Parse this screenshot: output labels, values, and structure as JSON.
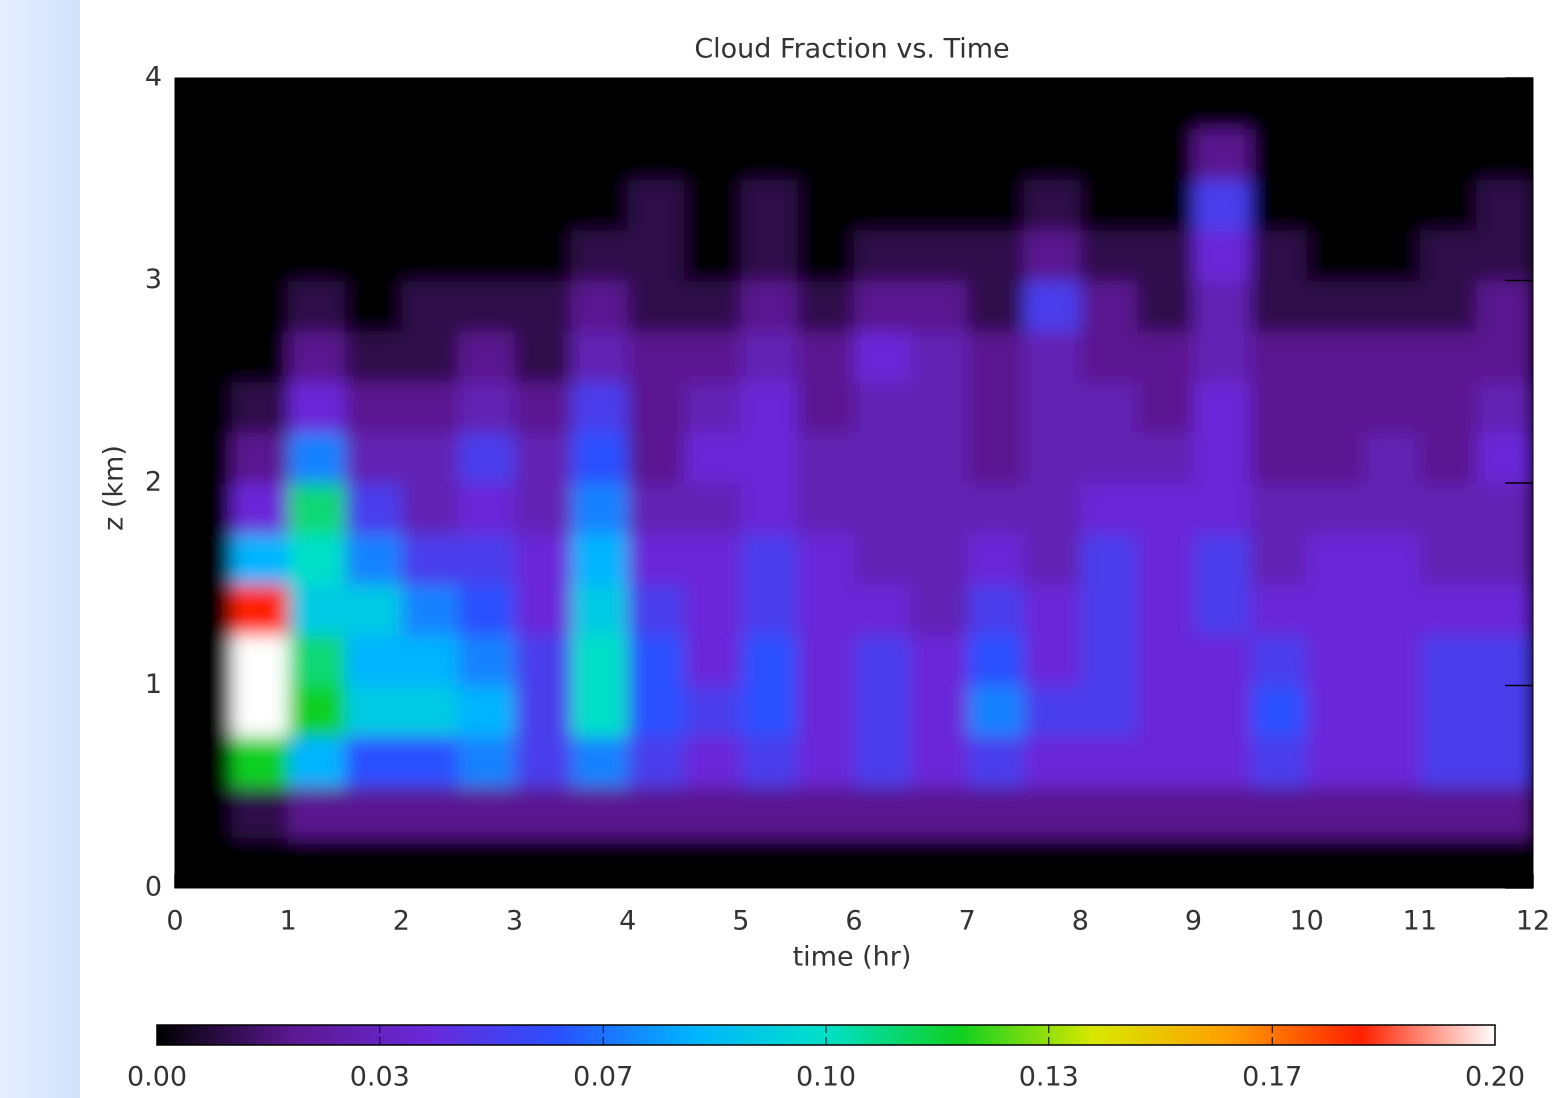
{
  "chart_data": {
    "type": "heatmap",
    "title": "Cloud Fraction vs. Time",
    "x_label": "time (hr)",
    "y_label": "z (km)",
    "xlim": [
      0,
      12
    ],
    "ylim": [
      0,
      4
    ],
    "xticks": [
      0,
      1,
      2,
      3,
      4,
      5,
      6,
      7,
      8,
      9,
      10,
      11,
      12
    ],
    "yticks": [
      0,
      1,
      2,
      3,
      4
    ],
    "xbins": [
      0,
      0.5,
      1,
      1.5,
      2,
      2.5,
      3,
      3.5,
      4,
      4.5,
      5,
      5.5,
      6,
      6.5,
      7,
      7.5,
      8,
      8.5,
      9,
      9.5,
      10,
      10.5,
      11,
      11.5,
      12
    ],
    "ybins": [
      0,
      0.25,
      0.5,
      0.75,
      1,
      1.25,
      1.5,
      1.75,
      2,
      2.25,
      2.5,
      2.75,
      3,
      3.25,
      3.5,
      3.75,
      4
    ],
    "values": [
      [
        0,
        0,
        0,
        0,
        0,
        0,
        0,
        0,
        0,
        0,
        0,
        0,
        0,
        0,
        0,
        0
      ],
      [
        0,
        0.01,
        0.12,
        0.2,
        0.2,
        0.18,
        0.08,
        0.04,
        0.02,
        0.01,
        0,
        0,
        0,
        0,
        0,
        0
      ],
      [
        0,
        0.02,
        0.08,
        0.12,
        0.11,
        0.09,
        0.1,
        0.11,
        0.07,
        0.04,
        0.02,
        0.01,
        0,
        0,
        0,
        0
      ],
      [
        0,
        0.02,
        0.06,
        0.09,
        0.08,
        0.09,
        0.07,
        0.05,
        0.03,
        0.02,
        0.01,
        0,
        0,
        0,
        0,
        0
      ],
      [
        0,
        0.02,
        0.06,
        0.09,
        0.08,
        0.07,
        0.05,
        0.03,
        0.03,
        0.02,
        0.01,
        0.01,
        0,
        0,
        0,
        0
      ],
      [
        0,
        0.02,
        0.07,
        0.08,
        0.07,
        0.06,
        0.05,
        0.04,
        0.05,
        0.03,
        0.02,
        0.01,
        0,
        0,
        0,
        0
      ],
      [
        0,
        0.02,
        0.05,
        0.05,
        0.05,
        0.04,
        0.04,
        0.03,
        0.03,
        0.02,
        0.01,
        0.01,
        0,
        0,
        0,
        0
      ],
      [
        0,
        0.02,
        0.07,
        0.1,
        0.1,
        0.09,
        0.08,
        0.07,
        0.06,
        0.05,
        0.03,
        0.02,
        0.01,
        0,
        0,
        0
      ],
      [
        0,
        0.02,
        0.05,
        0.06,
        0.06,
        0.05,
        0.04,
        0.03,
        0.02,
        0.02,
        0.02,
        0.01,
        0.01,
        0.01,
        0,
        0
      ],
      [
        0,
        0.02,
        0.04,
        0.05,
        0.04,
        0.04,
        0.04,
        0.03,
        0.04,
        0.03,
        0.02,
        0.01,
        0,
        0,
        0,
        0
      ],
      [
        0,
        0.02,
        0.05,
        0.06,
        0.06,
        0.05,
        0.05,
        0.04,
        0.04,
        0.04,
        0.03,
        0.02,
        0.01,
        0.01,
        0,
        0
      ],
      [
        0,
        0.02,
        0.04,
        0.04,
        0.04,
        0.04,
        0.04,
        0.03,
        0.03,
        0.02,
        0.02,
        0.01,
        0,
        0,
        0,
        0
      ],
      [
        0,
        0.02,
        0.05,
        0.05,
        0.05,
        0.04,
        0.03,
        0.03,
        0.03,
        0.03,
        0.04,
        0.02,
        0.01,
        0,
        0,
        0
      ],
      [
        0,
        0.02,
        0.04,
        0.04,
        0.04,
        0.03,
        0.03,
        0.03,
        0.03,
        0.03,
        0.03,
        0.02,
        0.01,
        0,
        0,
        0
      ],
      [
        0,
        0.02,
        0.05,
        0.07,
        0.06,
        0.05,
        0.04,
        0.03,
        0.02,
        0.02,
        0.02,
        0.01,
        0.01,
        0,
        0,
        0
      ],
      [
        0,
        0.02,
        0.04,
        0.05,
        0.04,
        0.04,
        0.03,
        0.03,
        0.03,
        0.03,
        0.03,
        0.05,
        0.02,
        0.01,
        0,
        0
      ],
      [
        0,
        0.02,
        0.04,
        0.05,
        0.05,
        0.05,
        0.05,
        0.04,
        0.03,
        0.03,
        0.02,
        0.02,
        0.01,
        0,
        0,
        0
      ],
      [
        0,
        0.02,
        0.04,
        0.04,
        0.04,
        0.04,
        0.04,
        0.04,
        0.03,
        0.02,
        0.02,
        0.01,
        0.01,
        0,
        0,
        0
      ],
      [
        0,
        0.02,
        0.04,
        0.04,
        0.04,
        0.05,
        0.05,
        0.04,
        0.04,
        0.04,
        0.03,
        0.03,
        0.04,
        0.05,
        0.02,
        0
      ],
      [
        0,
        0.02,
        0.05,
        0.06,
        0.05,
        0.04,
        0.03,
        0.03,
        0.02,
        0.02,
        0.02,
        0.01,
        0.01,
        0,
        0,
        0
      ],
      [
        0,
        0.02,
        0.04,
        0.04,
        0.04,
        0.04,
        0.04,
        0.03,
        0.02,
        0.02,
        0.02,
        0.01,
        0,
        0,
        0,
        0
      ],
      [
        0,
        0.02,
        0.04,
        0.04,
        0.04,
        0.04,
        0.04,
        0.03,
        0.03,
        0.02,
        0.02,
        0.01,
        0,
        0,
        0,
        0
      ],
      [
        0,
        0.02,
        0.05,
        0.05,
        0.05,
        0.04,
        0.03,
        0.03,
        0.02,
        0.02,
        0.02,
        0.01,
        0.01,
        0,
        0,
        0
      ],
      [
        0,
        0.02,
        0.05,
        0.05,
        0.05,
        0.04,
        0.03,
        0.03,
        0.04,
        0.03,
        0.02,
        0.02,
        0.01,
        0.01,
        0,
        0
      ]
    ],
    "clim": [
      0,
      0.2
    ],
    "cticks": [
      {
        "value": 0,
        "label": "0.00"
      },
      {
        "value": 0.0333,
        "label": "0.03"
      },
      {
        "value": 0.0667,
        "label": "0.07"
      },
      {
        "value": 0.1,
        "label": "0.10"
      },
      {
        "value": 0.1333,
        "label": "0.13"
      },
      {
        "value": 0.1667,
        "label": "0.17"
      },
      {
        "value": 0.2,
        "label": "0.20"
      }
    ],
    "colormap": [
      "#000000",
      "#5a1890",
      "#6a28d8",
      "#2a50ff",
      "#00b4ff",
      "#00e0c8",
      "#10d020",
      "#d8e800",
      "#ffa000",
      "#ff2000",
      "#ffffff"
    ]
  }
}
